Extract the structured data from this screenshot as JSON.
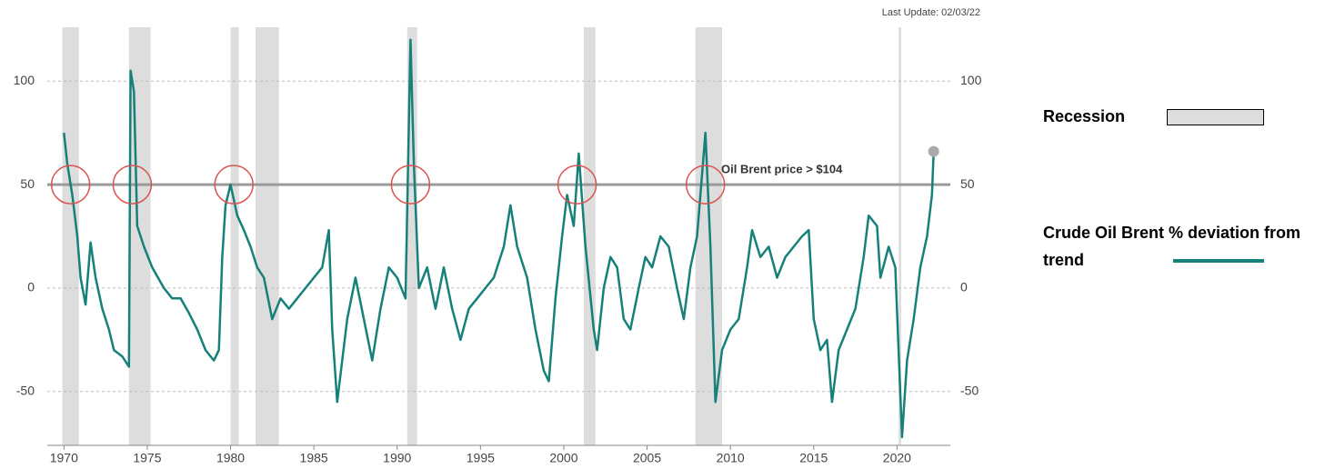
{
  "chart_data": {
    "type": "line",
    "note": "Last Update: 02/03/22",
    "xlim": [
      1969,
      2023.2
    ],
    "xticks": [
      1970,
      1975,
      1980,
      1985,
      1990,
      1995,
      2000,
      2005,
      2010,
      2015,
      2020
    ],
    "ylim": [
      -76,
      126
    ],
    "yticks": [
      -50,
      0,
      50,
      100
    ],
    "grid": true,
    "legend": "right",
    "threshold": {
      "value": 50,
      "label": "Oil Brent price > $104",
      "color": "#9a9a9a"
    },
    "circles": [
      1970.4,
      1974.1,
      1980.2,
      1990.8,
      2000.8,
      2008.5
    ],
    "recessions": {
      "name": "Recession",
      "color": "#dddddd",
      "spans": [
        [
          1969.9,
          1970.9
        ],
        [
          1973.9,
          1975.2
        ],
        [
          1980.0,
          1980.5
        ],
        [
          1981.5,
          1982.9
        ],
        [
          1990.6,
          1991.2
        ],
        [
          2001.2,
          2001.9
        ],
        [
          2007.9,
          2009.5
        ],
        [
          2020.1,
          2020.25
        ]
      ]
    },
    "series": [
      {
        "name": "Crude Oil Brent % deviation from trend",
        "color": "#16807a",
        "x": [
          1970.0,
          1970.2,
          1970.5,
          1970.8,
          1971.0,
          1971.3,
          1971.6,
          1971.9,
          1972.3,
          1972.7,
          1973.0,
          1973.5,
          1973.9,
          1974.0,
          1974.2,
          1974.4,
          1974.8,
          1975.3,
          1976.0,
          1976.5,
          1977.0,
          1977.5,
          1978.0,
          1978.5,
          1979.0,
          1979.3,
          1979.5,
          1979.7,
          1980.0,
          1980.4,
          1980.8,
          1981.2,
          1981.6,
          1982.0,
          1982.5,
          1983.0,
          1983.5,
          1984.0,
          1984.5,
          1985.0,
          1985.5,
          1985.9,
          1986.1,
          1986.4,
          1986.7,
          1987.0,
          1987.5,
          1988.0,
          1988.5,
          1989.0,
          1989.5,
          1990.0,
          1990.5,
          1990.8,
          1991.0,
          1991.3,
          1991.8,
          1992.3,
          1992.8,
          1993.3,
          1993.8,
          1994.3,
          1994.8,
          1995.3,
          1995.8,
          1996.4,
          1996.8,
          1997.2,
          1997.8,
          1998.3,
          1998.8,
          1999.1,
          1999.5,
          1999.9,
          2000.2,
          2000.6,
          2000.9,
          2001.3,
          2001.8,
          2002.0,
          2002.4,
          2002.8,
          2003.2,
          2003.6,
          2004.0,
          2004.5,
          2004.9,
          2005.3,
          2005.8,
          2006.3,
          2006.8,
          2007.2,
          2007.6,
          2008.0,
          2008.5,
          2008.8,
          2009.1,
          2009.5,
          2010.0,
          2010.5,
          2011.0,
          2011.3,
          2011.8,
          2012.3,
          2012.8,
          2013.3,
          2013.8,
          2014.3,
          2014.7,
          2015.0,
          2015.4,
          2015.8,
          2016.1,
          2016.5,
          2017.0,
          2017.5,
          2018.0,
          2018.3,
          2018.8,
          2019.0,
          2019.5,
          2019.9,
          2020.3,
          2020.6,
          2021.0,
          2021.4,
          2021.8,
          2022.1,
          2022.2
        ],
        "values": [
          75,
          60,
          45,
          25,
          5,
          -8,
          22,
          5,
          -10,
          -20,
          -30,
          -33,
          -38,
          105,
          95,
          30,
          20,
          10,
          0,
          -5,
          -5,
          -12,
          -20,
          -30,
          -35,
          -30,
          15,
          40,
          50,
          35,
          28,
          20,
          10,
          5,
          -15,
          -5,
          -10,
          -5,
          0,
          5,
          10,
          28,
          -20,
          -55,
          -35,
          -15,
          5,
          -15,
          -35,
          -10,
          10,
          5,
          -5,
          120,
          60,
          0,
          10,
          -10,
          10,
          -10,
          -25,
          -10,
          -5,
          0,
          5,
          20,
          40,
          20,
          5,
          -20,
          -40,
          -45,
          -5,
          25,
          45,
          30,
          65,
          20,
          -20,
          -30,
          0,
          15,
          10,
          -15,
          -20,
          0,
          15,
          10,
          25,
          20,
          0,
          -15,
          10,
          25,
          75,
          20,
          -55,
          -30,
          -20,
          -15,
          10,
          28,
          15,
          20,
          5,
          15,
          20,
          25,
          28,
          -15,
          -30,
          -25,
          -55,
          -30,
          -20,
          -10,
          15,
          35,
          30,
          5,
          20,
          10,
          -72,
          -35,
          -15,
          10,
          25,
          45,
          66
        ]
      }
    ]
  }
}
